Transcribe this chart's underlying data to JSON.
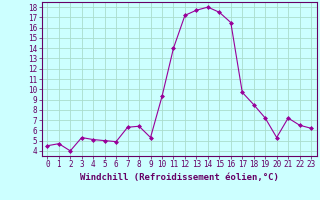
{
  "x_data": [
    0,
    1,
    2,
    3,
    4,
    5,
    6,
    7,
    8,
    9,
    10,
    11,
    12,
    13,
    14,
    15,
    16,
    17,
    18,
    19,
    20,
    21,
    22,
    23
  ],
  "y_data": [
    4.5,
    4.7,
    4.0,
    5.3,
    5.1,
    5.0,
    4.9,
    6.3,
    6.4,
    5.3,
    9.3,
    14.0,
    17.2,
    17.7,
    18.0,
    17.5,
    16.5,
    9.7,
    8.5,
    7.2,
    5.3,
    7.2,
    6.5,
    6.2
  ],
  "line_color": "#990099",
  "marker_color": "#990099",
  "bg_color": "#ccffff",
  "grid_color": "#aaddcc",
  "xlabel": "Windchill (Refroidissement éolien,°C)",
  "xlim": [
    -0.5,
    23.5
  ],
  "ylim": [
    3.5,
    18.5
  ],
  "xticks": [
    0,
    1,
    2,
    3,
    4,
    5,
    6,
    7,
    8,
    9,
    10,
    11,
    12,
    13,
    14,
    15,
    16,
    17,
    18,
    19,
    20,
    21,
    22,
    23
  ],
  "yticks": [
    4,
    5,
    6,
    7,
    8,
    9,
    10,
    11,
    12,
    13,
    14,
    15,
    16,
    17,
    18
  ],
  "font_color": "#660066",
  "tick_fontsize": 5.5,
  "xlabel_fontsize": 6.5,
  "linewidth": 0.8,
  "markersize": 2.0
}
